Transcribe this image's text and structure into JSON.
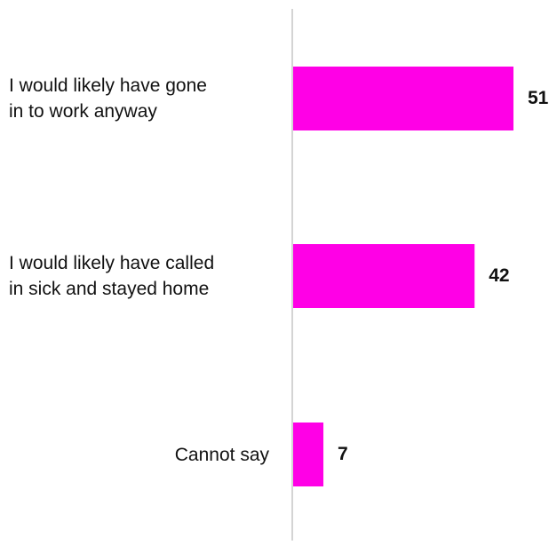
{
  "chart_data": {
    "type": "bar",
    "orientation": "horizontal",
    "categories": [
      "I would likely have gone\nin to work anyway",
      "I would likely have called\nin sick and stayed home",
      "Cannot say"
    ],
    "values": [
      51,
      42,
      7
    ],
    "data_labels": [
      "51",
      "42",
      "7"
    ],
    "category_label_align": [
      "left",
      "left",
      "right"
    ],
    "bar_color": "#ff00e6",
    "axis_color": "#d4d4d4",
    "xlim": [
      0,
      51
    ],
    "grid": false,
    "legend": "none"
  }
}
